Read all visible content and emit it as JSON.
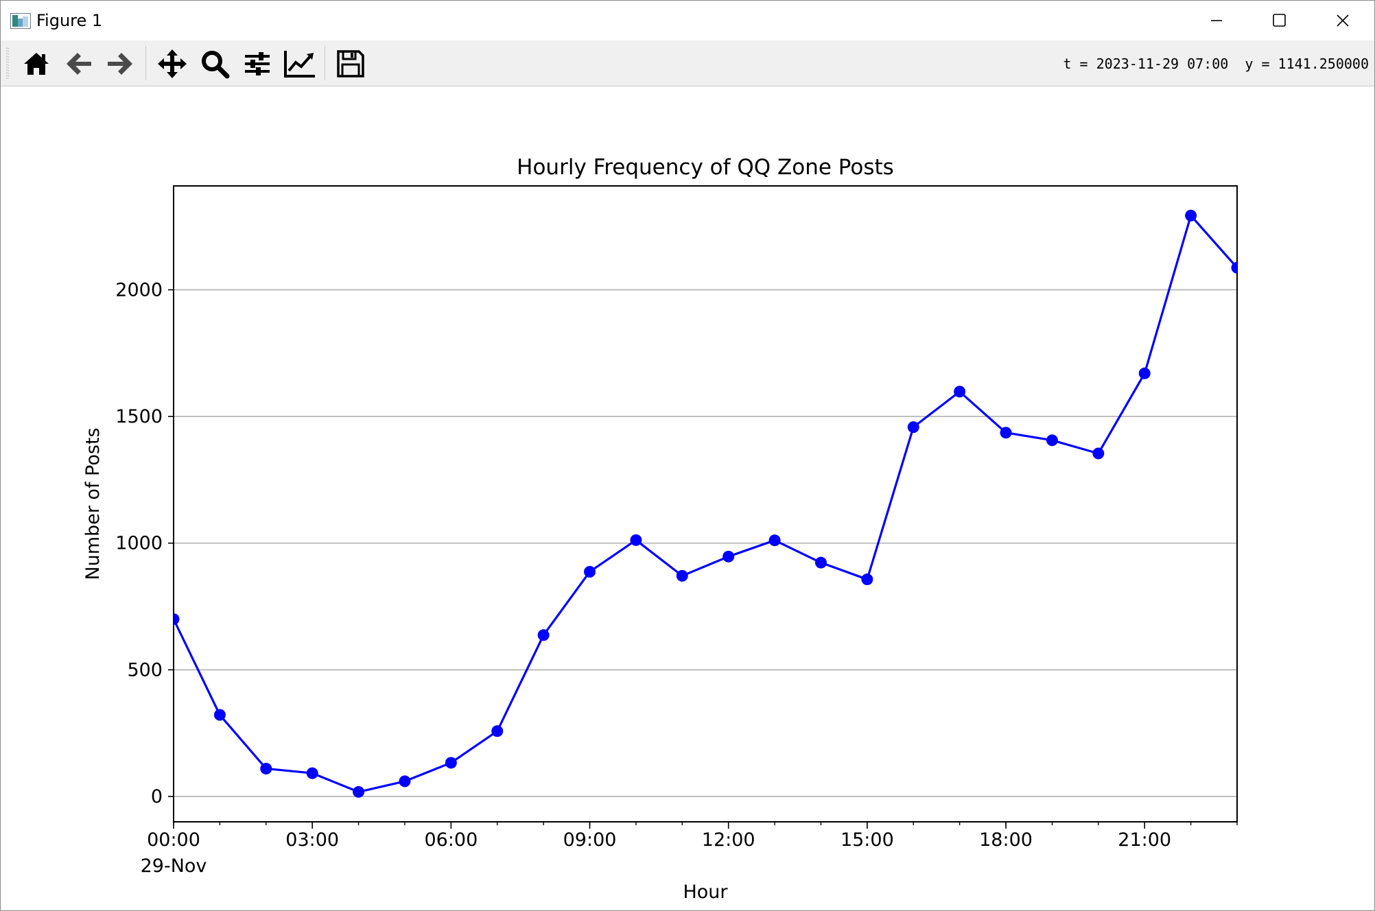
{
  "window": {
    "title": "Figure 1",
    "minimize_icon": "minimize-icon",
    "maximize_icon": "maximize-icon",
    "close_icon": "close-icon"
  },
  "toolbar": {
    "buttons": [
      {
        "icon": "home-icon",
        "name": "home-button"
      },
      {
        "icon": "back-arrow-icon",
        "name": "back-button"
      },
      {
        "icon": "forward-arrow-icon",
        "name": "forward-button"
      },
      {
        "icon": "pan-icon",
        "name": "pan-button"
      },
      {
        "icon": "zoom-icon",
        "name": "zoom-button"
      },
      {
        "icon": "configure-subplots-icon",
        "name": "configure-subplots-button"
      },
      {
        "icon": "edit-axis-icon",
        "name": "edit-axis-button"
      },
      {
        "icon": "save-icon",
        "name": "save-button"
      }
    ],
    "coords_text": "t = 2023-11-29 07:00  y = 1141.250000"
  },
  "chart_data": {
    "type": "line",
    "title": "Hourly Frequency of QQ Zone Posts",
    "xlabel": "Hour",
    "ylabel": "Number of Posts",
    "x_hours": [
      0,
      1,
      2,
      3,
      4,
      5,
      6,
      7,
      8,
      9,
      10,
      11,
      12,
      13,
      14,
      15,
      16,
      17,
      18,
      19,
      20,
      21,
      22,
      23
    ],
    "values": [
      700,
      322,
      110,
      92,
      18,
      60,
      133,
      258,
      637,
      887,
      1012,
      871,
      947,
      1011,
      923,
      857,
      1458,
      1598,
      1436,
      1406,
      1354,
      1670,
      2293,
      2087
    ],
    "xlim": [
      0,
      23
    ],
    "ylim": [
      -100,
      2410
    ],
    "y_ticks": [
      0,
      500,
      1000,
      1500,
      2000
    ],
    "y_tick_labels": [
      "0",
      "500",
      "1000",
      "1500",
      "2000"
    ],
    "x_ticks": [
      0,
      3,
      6,
      9,
      12,
      15,
      18,
      21
    ],
    "x_tick_labels": [
      "00:00",
      "03:00",
      "06:00",
      "09:00",
      "12:00",
      "15:00",
      "18:00",
      "21:00"
    ],
    "x_tick_sublabel": "29-Nov",
    "x_minor_ticks_every": 1,
    "grid": "y-only",
    "line_color": "#0000ff",
    "marker": "circle"
  }
}
